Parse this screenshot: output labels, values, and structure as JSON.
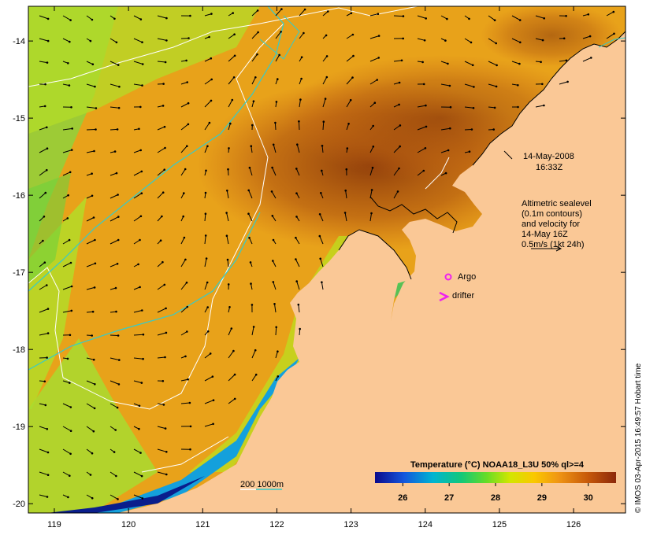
{
  "map": {
    "lon_range": [
      118.65,
      126.7
    ],
    "lat_range": [
      -20.12,
      -13.55
    ],
    "x_ticks": [
      119,
      120,
      121,
      122,
      123,
      124,
      125,
      126
    ],
    "y_ticks": [
      -14,
      -15,
      -16,
      -17,
      -18,
      -19,
      -20
    ],
    "x_tick_labels": [
      "119",
      "120",
      "121",
      "122",
      "123",
      "124",
      "125",
      "126"
    ],
    "y_tick_labels": [
      "-14",
      "-15",
      "-16",
      "-17",
      "-18",
      "-19",
      "-20"
    ]
  },
  "annotations": {
    "date": "14-May-2008",
    "time": "16:33Z",
    "sealevel_lines": [
      "Altimetric sealevel",
      "(0.1m contours)",
      "and velocity for",
      "14-May 16Z",
      "0.5m/s (1kt 24h)"
    ],
    "argo_label": "Argo",
    "drifter_label": "drifter",
    "depth_label": "200  1000m"
  },
  "colorbar": {
    "title": "Temperature (°C) NOAA18_L3U 50% ql>=4",
    "range": [
      25.4,
      30.6
    ],
    "ticks": [
      26,
      27,
      28,
      29,
      30
    ],
    "tick_labels": [
      "26",
      "27",
      "28",
      "29",
      "30"
    ]
  },
  "credit": "© IMOS 03-Apr-2015 16:49:57 Hobart time",
  "colors": {
    "land": "#fac896",
    "contour_200": "#ffffff",
    "contour_1000": "#33cccc",
    "argo": "#ee22ee",
    "drifter": "#ee22ee"
  }
}
